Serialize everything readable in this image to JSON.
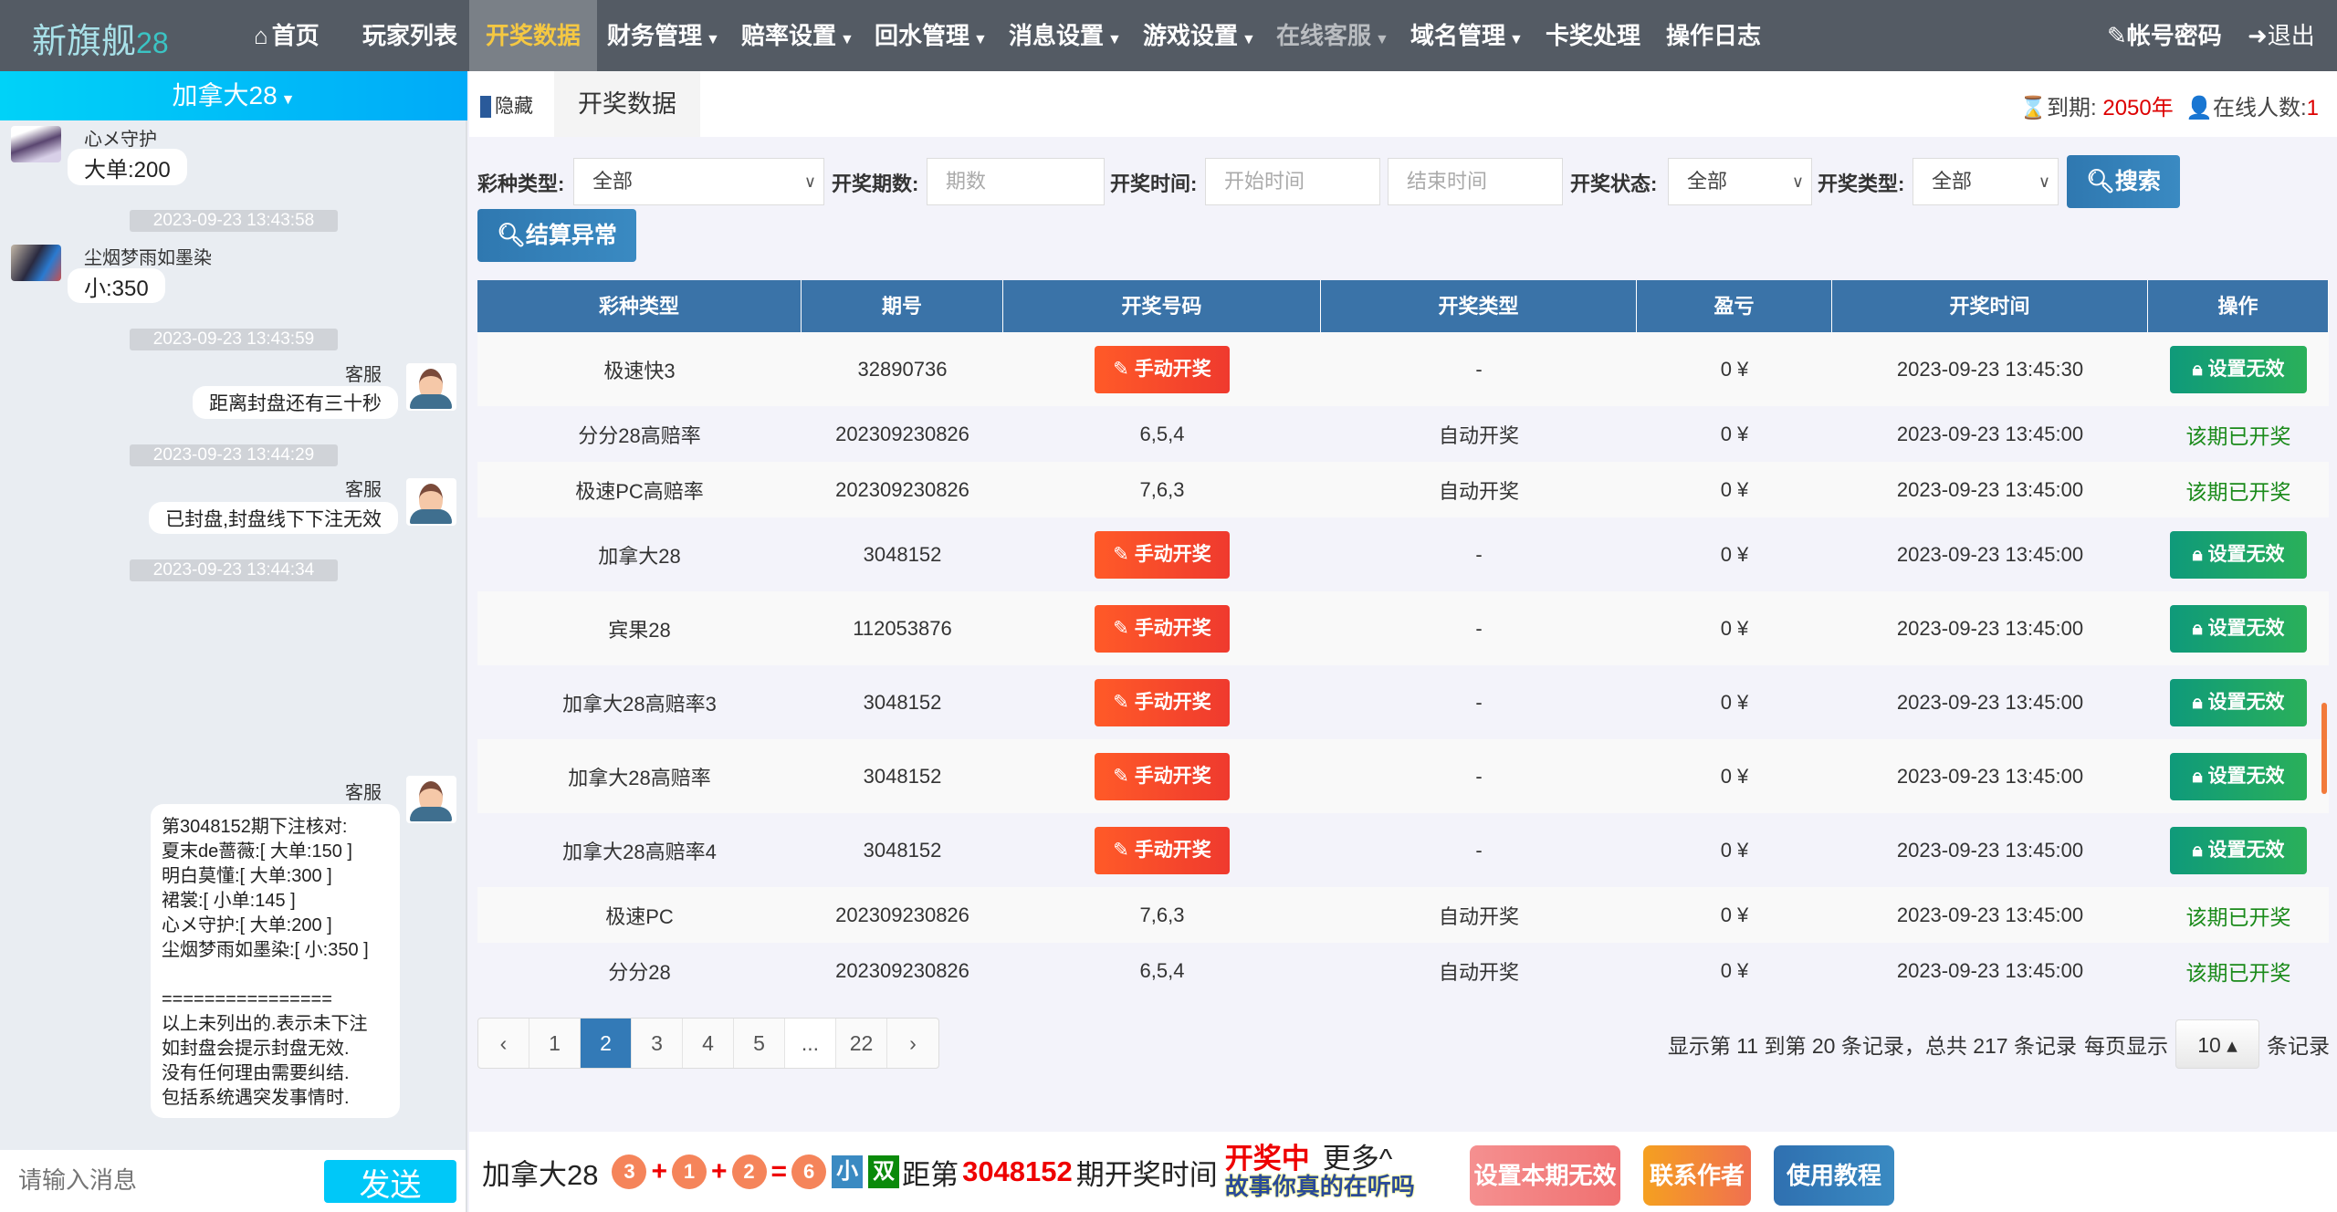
{
  "nav": {
    "logo": "新旗舰",
    "logo_suffix": "28",
    "items": [
      {
        "label": "首页",
        "icon": "home-icon"
      },
      {
        "label": "玩家列表"
      },
      {
        "label": "开奖数据",
        "active": true
      },
      {
        "label": "财务管理",
        "dropdown": true
      },
      {
        "label": "赔率设置",
        "dropdown": true
      },
      {
        "label": "回水管理",
        "dropdown": true
      },
      {
        "label": "消息设置",
        "dropdown": true
      },
      {
        "label": "游戏设置",
        "dropdown": true
      },
      {
        "label": "在线客服",
        "dropdown": true,
        "disabled": true
      },
      {
        "label": "域名管理",
        "dropdown": true
      },
      {
        "label": "卡奖处理"
      },
      {
        "label": "操作日志"
      }
    ],
    "account": "帐号密码",
    "logout": "退出",
    "active_color": "#f5c842"
  },
  "sidebar": {
    "game_select": "加拿大28",
    "messages": [
      {
        "user": "心メ守护",
        "text": "大单:200"
      },
      {
        "timestamp": "2023-09-23 13:43:58"
      },
      {
        "user": "尘烟梦雨如墨染",
        "text": "小:350"
      },
      {
        "timestamp": "2023-09-23 13:43:59"
      },
      {
        "user": "客服",
        "text": "距离封盘还有三十秒"
      },
      {
        "timestamp": "2023-09-23 13:44:29"
      },
      {
        "user": "客服",
        "text": "已封盘,封盘线下下注无效"
      },
      {
        "timestamp": "2023-09-23 13:44:34"
      },
      {
        "user": "客服",
        "text": "第3048152期下注核对:\n夏末de蔷薇:[ 大单:150 ]\n明白莫懂:[ 大单:300 ]\n裙裳:[ 小单:145 ]\n心メ守护:[ 大单:200 ]\n尘烟梦雨如墨染:[ 小:350 ]\n\n================\n以上未列出的.表示未下注\n如封盘会提示封盘无效.\n没有任何理由需要纠结.\n包括系统遇突发事情时."
      }
    ],
    "input_placeholder": "请输入消息",
    "send": "发送"
  },
  "header": {
    "hide": "隐藏",
    "tab": "开奖数据",
    "expire_label": "到期:",
    "expire_value": "2050年",
    "online_label": "在线人数:",
    "online_value": "1"
  },
  "filters": {
    "lottery_type_label": "彩种类型:",
    "lottery_type_value": "全部",
    "issue_label": "开奖期数:",
    "issue_placeholder": "期数",
    "time_label": "开奖时间:",
    "start_placeholder": "开始时间",
    "end_placeholder": "结束时间",
    "status_label": "开奖状态:",
    "status_value": "全部",
    "draw_type_label": "开奖类型:",
    "draw_type_value": "全部",
    "search": "搜索",
    "settle_error": "结算异常"
  },
  "table": {
    "columns": [
      "彩种类型",
      "期号",
      "开奖号码",
      "开奖类型",
      "盈亏",
      "开奖时间",
      "操作"
    ],
    "manual_label": "手动开奖",
    "invalid_label": "设置无效",
    "done_label": "该期已开奖",
    "rows": [
      {
        "type": "极速快3",
        "issue": "32890736",
        "numbers": null,
        "draw_type": "-",
        "profit": "0 ¥",
        "time": "2023-09-23 13:45:30"
      },
      {
        "type": "分分28高赔率",
        "issue": "202309230826",
        "numbers": "6,5,4",
        "draw_type": "自动开奖",
        "profit": "0 ¥",
        "time": "2023-09-23 13:45:00"
      },
      {
        "type": "极速PC高赔率",
        "issue": "202309230826",
        "numbers": "7,6,3",
        "draw_type": "自动开奖",
        "profit": "0 ¥",
        "time": "2023-09-23 13:45:00"
      },
      {
        "type": "加拿大28",
        "issue": "3048152",
        "numbers": null,
        "draw_type": "-",
        "profit": "0 ¥",
        "time": "2023-09-23 13:45:00"
      },
      {
        "type": "宾果28",
        "issue": "112053876",
        "numbers": null,
        "draw_type": "-",
        "profit": "0 ¥",
        "time": "2023-09-23 13:45:00"
      },
      {
        "type": "加拿大28高赔率3",
        "issue": "3048152",
        "numbers": null,
        "draw_type": "-",
        "profit": "0 ¥",
        "time": "2023-09-23 13:45:00"
      },
      {
        "type": "加拿大28高赔率",
        "issue": "3048152",
        "numbers": null,
        "draw_type": "-",
        "profit": "0 ¥",
        "time": "2023-09-23 13:45:00"
      },
      {
        "type": "加拿大28高赔率4",
        "issue": "3048152",
        "numbers": null,
        "draw_type": "-",
        "profit": "0 ¥",
        "time": "2023-09-23 13:45:00"
      },
      {
        "type": "极速PC",
        "issue": "202309230826",
        "numbers": "7,6,3",
        "draw_type": "自动开奖",
        "profit": "0 ¥",
        "time": "2023-09-23 13:45:00"
      },
      {
        "type": "分分28",
        "issue": "202309230826",
        "numbers": "6,5,4",
        "draw_type": "自动开奖",
        "profit": "0 ¥",
        "time": "2023-09-23 13:45:00"
      }
    ]
  },
  "pagination": {
    "prev": "‹",
    "pages": [
      "1",
      "2",
      "3",
      "4",
      "5",
      "...",
      "22"
    ],
    "current": "2",
    "next": "›",
    "info": "显示第 11 到第 20 条记录，总共 217 条记录",
    "per_page_label": "每页显示",
    "per_page": "10 ▴",
    "per_page_suffix": "条记录"
  },
  "bottom": {
    "game": "加拿大28",
    "balls": [
      "3",
      "1",
      "2"
    ],
    "sum": "6",
    "size": "小",
    "parity": "双",
    "countdown_prefix": "距第",
    "issue": "3048152",
    "countdown_suffix": "期开奖时间",
    "status": "开奖中",
    "more": "更多^",
    "overlay": "故事你真的在听吗",
    "buttons": [
      "设置本期无效",
      "联系作者",
      "使用教程"
    ]
  }
}
